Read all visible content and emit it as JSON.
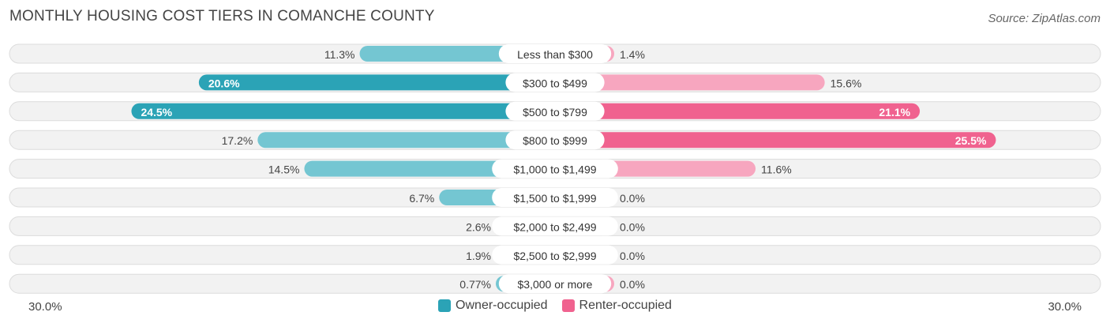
{
  "title": "MONTHLY HOUSING COST TIERS IN COMANCHE COUNTY",
  "source": "Source: ZipAtlas.com",
  "axis": {
    "left_label": "30.0%",
    "right_label": "30.0%",
    "max": 30.0
  },
  "legend": {
    "owner": "Owner-occupied",
    "renter": "Renter-occupied"
  },
  "colors": {
    "owner_dark": "#2ba3b6",
    "owner_light": "#74c6d2",
    "renter_dark": "#f0628f",
    "renter_light": "#f7a6bf",
    "row_bg": "#f0f0f0",
    "row_border": "#dcdcdc"
  },
  "chart_data": {
    "type": "bar",
    "orientation": "horizontal-diverging",
    "title": "MONTHLY HOUSING COST TIERS IN COMANCHE COUNTY",
    "xlim": [
      -30,
      30
    ],
    "categories": [
      "Less than $300",
      "$300 to $499",
      "$500 to $799",
      "$800 to $999",
      "$1,000 to $1,499",
      "$1,500 to $1,999",
      "$2,000 to $2,499",
      "$2,500 to $2,999",
      "$3,000 or more"
    ],
    "series": [
      {
        "name": "Owner-occupied",
        "values": [
          11.3,
          20.6,
          24.5,
          17.2,
          14.5,
          6.7,
          2.6,
          1.9,
          0.77
        ],
        "labels": [
          "11.3%",
          "20.6%",
          "24.5%",
          "17.2%",
          "14.5%",
          "6.7%",
          "2.6%",
          "1.9%",
          "0.77%"
        ]
      },
      {
        "name": "Renter-occupied",
        "values": [
          1.4,
          15.6,
          21.1,
          25.5,
          11.6,
          0.0,
          0.0,
          0.0,
          0.0
        ],
        "labels": [
          "1.4%",
          "15.6%",
          "21.1%",
          "25.5%",
          "11.6%",
          "0.0%",
          "0.0%",
          "0.0%",
          "0.0%"
        ]
      }
    ]
  }
}
